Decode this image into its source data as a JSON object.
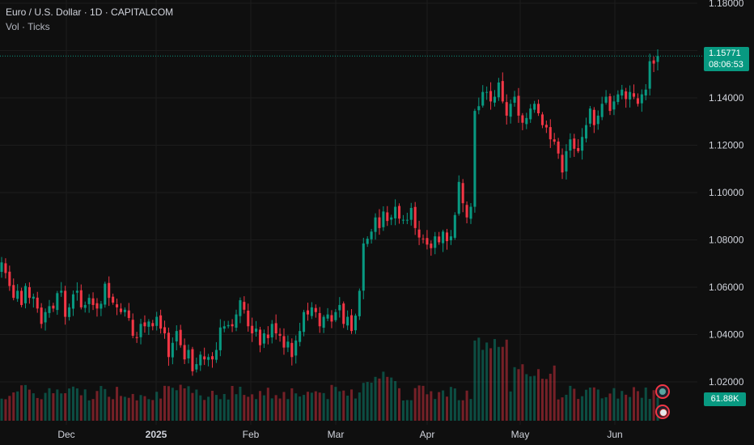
{
  "header": {
    "title": "Euro / U.S. Dollar · 1D · CAPITALCOM",
    "volume_label": "Vol · Ticks"
  },
  "price_badge": {
    "price": "1.15771",
    "countdown": "08:06:53"
  },
  "volume_badge": "61.88K",
  "colors": {
    "up": "#089981",
    "down": "#f23645",
    "background": "#0f0f0f",
    "axis_text": "#d1d4dc"
  },
  "icons": [
    "globe-event-icon",
    "us-flag-event-icon"
  ],
  "chart_data": {
    "type": "candlestick",
    "symbol": "Euro / U.S. Dollar",
    "interval": "1D",
    "source": "CAPITALCOM",
    "y_ticks": [
      "1.18000",
      "1.16000",
      "1.14000",
      "1.12000",
      "1.10000",
      "1.08000",
      "1.06000",
      "1.04000",
      "1.02000"
    ],
    "ylim": [
      1.0,
      1.18
    ],
    "x_ticks": [
      "Dec",
      "2025",
      "Feb",
      "Mar",
      "Apr",
      "May",
      "Jun"
    ],
    "close": [
      1.0705,
      1.066,
      1.0605,
      1.0555,
      1.0585,
      1.0525,
      1.0605,
      1.0555,
      1.056,
      1.051,
      1.0445,
      1.0495,
      1.052,
      1.051,
      1.0575,
      1.0585,
      1.0475,
      1.0515,
      1.057,
      1.0585,
      1.0515,
      1.0525,
      1.0555,
      1.0525,
      1.051,
      1.053,
      1.0615,
      1.0555,
      1.0535,
      1.0515,
      1.0495,
      1.0505,
      1.047,
      1.0395,
      1.0385,
      1.0445,
      1.0435,
      1.0455,
      1.0435,
      1.0475,
      1.0425,
      1.0405,
      1.0305,
      1.0365,
      1.0415,
      1.0355,
      1.0295,
      1.0335,
      1.0245,
      1.0275,
      1.0315,
      1.0295,
      1.0305,
      1.0295,
      1.0335,
      1.043,
      1.0435,
      1.044,
      1.0435,
      1.0485,
      1.0545,
      1.0505,
      1.0435,
      1.0405,
      1.0425,
      1.0355,
      1.0405,
      1.0385,
      1.0445,
      1.0405,
      1.0395,
      1.0345,
      1.037,
      1.0305,
      1.0375,
      1.0415,
      1.0495,
      1.0485,
      1.0515,
      1.0495,
      1.0435,
      1.0475,
      1.0485,
      1.0455,
      1.0495,
      1.0525,
      1.0445,
      1.0475,
      1.0415,
      1.048,
      1.0585,
      1.0785,
      1.0805,
      1.0835,
      1.0895,
      1.085,
      1.092,
      1.088,
      1.0895,
      1.094,
      1.089,
      1.0885,
      1.0885,
      1.0935,
      1.085,
      1.081,
      1.0805,
      1.078,
      1.0765,
      1.0815,
      1.079,
      1.0835,
      1.0795,
      1.0815,
      1.0905,
      1.1045,
      1.0955,
      1.0895,
      1.094,
      1.1345,
      1.1365,
      1.1425,
      1.1425,
      1.1385,
      1.1405,
      1.1465,
      1.1385,
      1.1325,
      1.1375,
      1.1405,
      1.1325,
      1.1295,
      1.1315,
      1.1355,
      1.1375,
      1.1335,
      1.1285,
      1.1275,
      1.1225,
      1.1215,
      1.1165,
      1.1085,
      1.1175,
      1.1225,
      1.1185,
      1.1175,
      1.1235,
      1.1285,
      1.1355,
      1.1285,
      1.1325,
      1.1375,
      1.1405,
      1.1345,
      1.1385,
      1.1415,
      1.1435,
      1.1395,
      1.1425,
      1.1405,
      1.1375,
      1.1415,
      1.1435,
      1.1555,
      1.1545,
      1.1577
    ],
    "volume_label": "Vol · Ticks",
    "last_price": 1.15771,
    "last_volume": "61.88K"
  }
}
